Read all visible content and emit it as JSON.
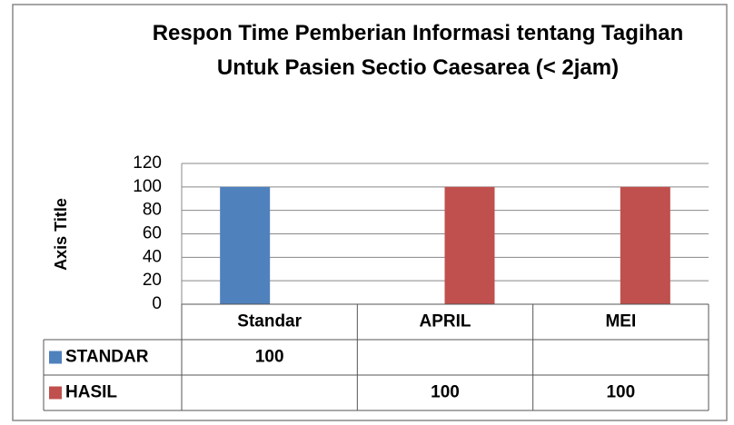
{
  "chart_data": {
    "type": "bar",
    "title": "Respon Time Pemberian Informasi tentang Tagihan Untuk Pasien Sectio Caesarea (< 2jam)",
    "y_axis_label": "Axis Title",
    "categories": [
      "Standar",
      "APRIL",
      "MEI"
    ],
    "series": [
      {
        "name": "STANDAR",
        "color": "#4f81bd",
        "values": [
          100,
          null,
          null
        ]
      },
      {
        "name": "HASIL",
        "color": "#c0504d",
        "values": [
          null,
          100,
          100
        ]
      }
    ],
    "ylim": [
      0,
      120
    ],
    "yticks": [
      0,
      20,
      40,
      60,
      80,
      100,
      120
    ],
    "grid": true,
    "data_table": true
  }
}
